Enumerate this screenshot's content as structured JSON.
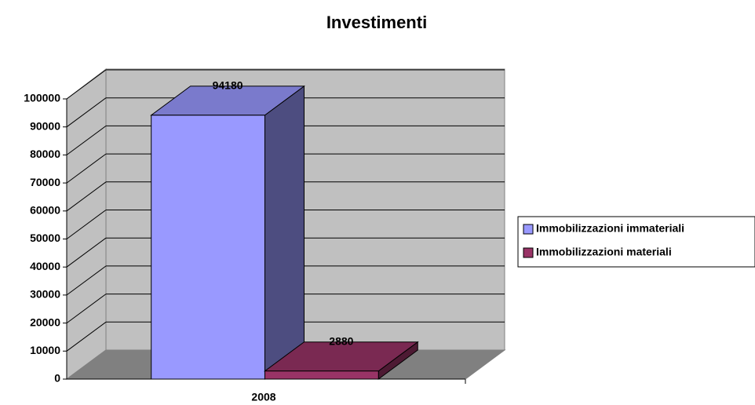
{
  "chart_data": {
    "type": "bar3d",
    "title": "Investimenti",
    "categories": [
      "2008"
    ],
    "series": [
      {
        "name": "Immobilizzazioni immateriali",
        "color": "#9999ff",
        "values": [
          94180
        ]
      },
      {
        "name": "Immobilizzazioni materiali",
        "color": "#993366",
        "values": [
          2880
        ]
      }
    ],
    "ylim": [
      0,
      100000
    ],
    "yticks": [
      0,
      10000,
      20000,
      30000,
      40000,
      50000,
      60000,
      70000,
      80000,
      90000,
      100000
    ],
    "grid": true,
    "legend": "right"
  }
}
